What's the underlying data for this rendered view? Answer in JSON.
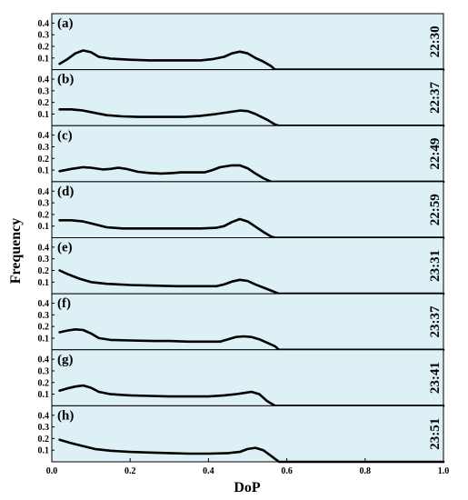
{
  "chart_data": {
    "type": "line",
    "xlabel": "DoP",
    "ylabel": "Frequency",
    "xlim": [
      0,
      1.0
    ],
    "ylim": [
      0,
      0.45
    ],
    "x_ticks": [
      "0.0",
      "0.2",
      "0.4",
      "0.6",
      "0.8",
      "1.0"
    ],
    "y_ticks": [
      "0.1",
      "0.2",
      "0.3",
      "0.4"
    ],
    "grid": false,
    "panel_background": "#dcf0f5",
    "line_color": "#000000",
    "panels": [
      {
        "label": "(a)",
        "time": "22:30",
        "points": [
          [
            0.02,
            0.05
          ],
          [
            0.04,
            0.09
          ],
          [
            0.06,
            0.14
          ],
          [
            0.08,
            0.165
          ],
          [
            0.1,
            0.15
          ],
          [
            0.12,
            0.11
          ],
          [
            0.15,
            0.095
          ],
          [
            0.2,
            0.085
          ],
          [
            0.25,
            0.08
          ],
          [
            0.3,
            0.08
          ],
          [
            0.35,
            0.08
          ],
          [
            0.38,
            0.08
          ],
          [
            0.41,
            0.09
          ],
          [
            0.44,
            0.11
          ],
          [
            0.46,
            0.14
          ],
          [
            0.48,
            0.155
          ],
          [
            0.5,
            0.14
          ],
          [
            0.52,
            0.1
          ],
          [
            0.54,
            0.07
          ],
          [
            0.56,
            0.03
          ],
          [
            0.57,
            0.0
          ],
          [
            1.0,
            0.0
          ]
        ]
      },
      {
        "label": "(b)",
        "time": "22:37",
        "points": [
          [
            0.02,
            0.14
          ],
          [
            0.05,
            0.14
          ],
          [
            0.08,
            0.13
          ],
          [
            0.11,
            0.11
          ],
          [
            0.14,
            0.09
          ],
          [
            0.18,
            0.08
          ],
          [
            0.22,
            0.075
          ],
          [
            0.3,
            0.075
          ],
          [
            0.34,
            0.075
          ],
          [
            0.38,
            0.085
          ],
          [
            0.42,
            0.1
          ],
          [
            0.45,
            0.115
          ],
          [
            0.48,
            0.13
          ],
          [
            0.5,
            0.125
          ],
          [
            0.52,
            0.1
          ],
          [
            0.55,
            0.05
          ],
          [
            0.57,
            0.01
          ],
          [
            0.58,
            0.0
          ],
          [
            1.0,
            0.0
          ]
        ]
      },
      {
        "label": "(c)",
        "time": "22:49",
        "points": [
          [
            0.02,
            0.09
          ],
          [
            0.05,
            0.11
          ],
          [
            0.08,
            0.125
          ],
          [
            0.1,
            0.12
          ],
          [
            0.13,
            0.105
          ],
          [
            0.15,
            0.11
          ],
          [
            0.17,
            0.12
          ],
          [
            0.19,
            0.11
          ],
          [
            0.22,
            0.085
          ],
          [
            0.25,
            0.075
          ],
          [
            0.28,
            0.07
          ],
          [
            0.31,
            0.075
          ],
          [
            0.33,
            0.08
          ],
          [
            0.36,
            0.08
          ],
          [
            0.39,
            0.08
          ],
          [
            0.41,
            0.1
          ],
          [
            0.43,
            0.125
          ],
          [
            0.46,
            0.14
          ],
          [
            0.48,
            0.14
          ],
          [
            0.5,
            0.115
          ],
          [
            0.52,
            0.07
          ],
          [
            0.54,
            0.03
          ],
          [
            0.56,
            0.0
          ],
          [
            1.0,
            0.0
          ]
        ]
      },
      {
        "label": "(d)",
        "time": "22:59",
        "points": [
          [
            0.02,
            0.15
          ],
          [
            0.05,
            0.15
          ],
          [
            0.08,
            0.14
          ],
          [
            0.11,
            0.115
          ],
          [
            0.14,
            0.09
          ],
          [
            0.18,
            0.08
          ],
          [
            0.22,
            0.08
          ],
          [
            0.3,
            0.08
          ],
          [
            0.38,
            0.08
          ],
          [
            0.42,
            0.085
          ],
          [
            0.44,
            0.1
          ],
          [
            0.46,
            0.135
          ],
          [
            0.48,
            0.16
          ],
          [
            0.5,
            0.14
          ],
          [
            0.52,
            0.095
          ],
          [
            0.54,
            0.05
          ],
          [
            0.56,
            0.01
          ],
          [
            0.57,
            0.0
          ],
          [
            1.0,
            0.0
          ]
        ]
      },
      {
        "label": "(e)",
        "time": "23:31",
        "points": [
          [
            0.02,
            0.2
          ],
          [
            0.04,
            0.17
          ],
          [
            0.07,
            0.13
          ],
          [
            0.1,
            0.1
          ],
          [
            0.14,
            0.085
          ],
          [
            0.2,
            0.075
          ],
          [
            0.26,
            0.07
          ],
          [
            0.32,
            0.065
          ],
          [
            0.38,
            0.065
          ],
          [
            0.42,
            0.065
          ],
          [
            0.44,
            0.08
          ],
          [
            0.46,
            0.105
          ],
          [
            0.48,
            0.12
          ],
          [
            0.5,
            0.11
          ],
          [
            0.52,
            0.08
          ],
          [
            0.55,
            0.04
          ],
          [
            0.58,
            0.0
          ],
          [
            1.0,
            0.0
          ]
        ]
      },
      {
        "label": "(f)",
        "time": "23:37",
        "points": [
          [
            0.02,
            0.15
          ],
          [
            0.04,
            0.165
          ],
          [
            0.06,
            0.175
          ],
          [
            0.08,
            0.17
          ],
          [
            0.1,
            0.14
          ],
          [
            0.12,
            0.1
          ],
          [
            0.15,
            0.085
          ],
          [
            0.2,
            0.08
          ],
          [
            0.26,
            0.075
          ],
          [
            0.3,
            0.075
          ],
          [
            0.35,
            0.07
          ],
          [
            0.4,
            0.07
          ],
          [
            0.43,
            0.07
          ],
          [
            0.45,
            0.09
          ],
          [
            0.47,
            0.11
          ],
          [
            0.49,
            0.115
          ],
          [
            0.51,
            0.11
          ],
          [
            0.53,
            0.09
          ],
          [
            0.55,
            0.06
          ],
          [
            0.57,
            0.03
          ],
          [
            0.58,
            0.0
          ],
          [
            1.0,
            0.0
          ]
        ]
      },
      {
        "label": "(g)",
        "time": "23:41",
        "points": [
          [
            0.02,
            0.13
          ],
          [
            0.04,
            0.15
          ],
          [
            0.06,
            0.165
          ],
          [
            0.08,
            0.175
          ],
          [
            0.1,
            0.155
          ],
          [
            0.12,
            0.12
          ],
          [
            0.15,
            0.1
          ],
          [
            0.2,
            0.09
          ],
          [
            0.25,
            0.085
          ],
          [
            0.3,
            0.08
          ],
          [
            0.35,
            0.08
          ],
          [
            0.4,
            0.08
          ],
          [
            0.44,
            0.09
          ],
          [
            0.47,
            0.1
          ],
          [
            0.49,
            0.11
          ],
          [
            0.51,
            0.12
          ],
          [
            0.53,
            0.1
          ],
          [
            0.55,
            0.04
          ],
          [
            0.57,
            0.0
          ],
          [
            1.0,
            0.0
          ]
        ]
      },
      {
        "label": "(h)",
        "time": "23:51",
        "points": [
          [
            0.02,
            0.19
          ],
          [
            0.05,
            0.16
          ],
          [
            0.08,
            0.135
          ],
          [
            0.11,
            0.11
          ],
          [
            0.15,
            0.095
          ],
          [
            0.2,
            0.085
          ],
          [
            0.25,
            0.08
          ],
          [
            0.3,
            0.075
          ],
          [
            0.35,
            0.07
          ],
          [
            0.4,
            0.07
          ],
          [
            0.45,
            0.075
          ],
          [
            0.48,
            0.085
          ],
          [
            0.5,
            0.11
          ],
          [
            0.52,
            0.12
          ],
          [
            0.54,
            0.1
          ],
          [
            0.56,
            0.05
          ],
          [
            0.58,
            0.0
          ],
          [
            1.0,
            0.0
          ]
        ]
      }
    ]
  }
}
